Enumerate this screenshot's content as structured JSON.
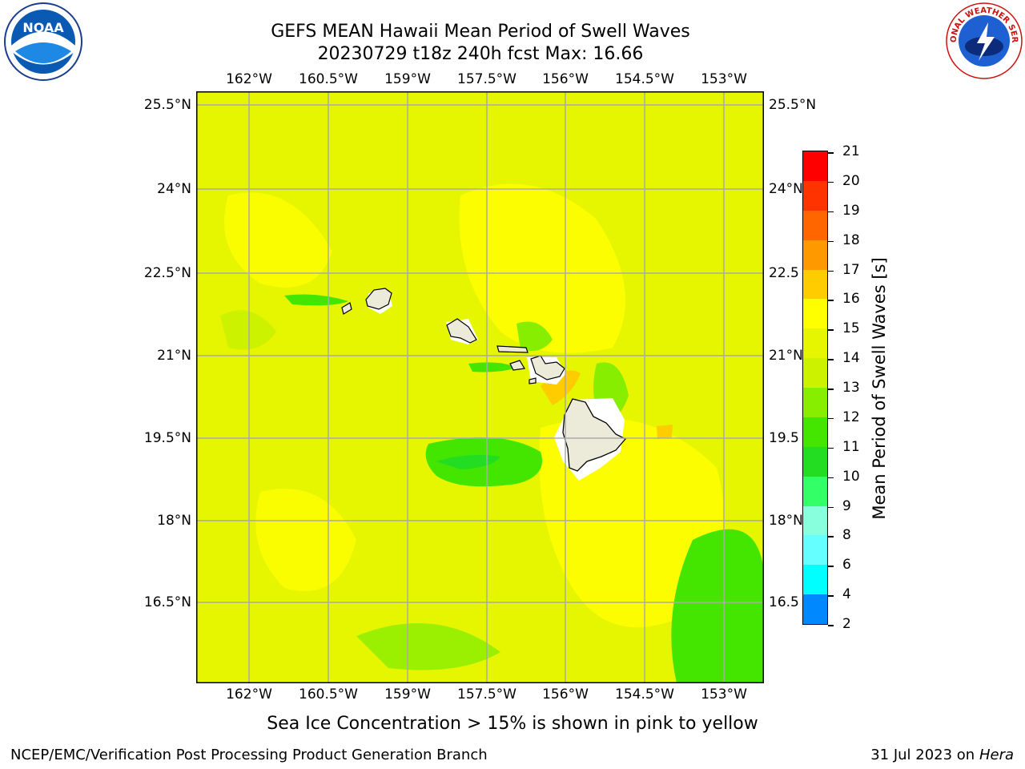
{
  "title": {
    "line1": "GEFS MEAN Hawaii Mean Period of Swell Waves",
    "line2": "20230729 t18z 240h fcst   Max: 16.66"
  },
  "map": {
    "lon_ticks": [
      "162°W",
      "160.5°W",
      "159°W",
      "157.5°W",
      "156°W",
      "154.5°W",
      "153°W"
    ],
    "lat_ticks": [
      "25.5°N",
      "24°N",
      "22.5°N",
      "21°N",
      "19.5°N",
      "18°N",
      "16.5°N"
    ],
    "lat_ticks_right": [
      "25.5°N",
      "24°N",
      "22.5",
      "21°N",
      "19.5",
      "18°N",
      "16.5"
    ],
    "background_color": "#e6f500",
    "land_color": "#ecebd9"
  },
  "colorbar": {
    "label": "Mean Period of Swell Waves [s]",
    "levels": [
      "21",
      "20",
      "19",
      "18",
      "17",
      "16",
      "15",
      "14",
      "13",
      "12",
      "11",
      "10",
      "9",
      "8",
      "6",
      "4",
      "2"
    ],
    "colors": [
      "#ff0000",
      "#ff3300",
      "#ff6600",
      "#ff9900",
      "#ffcc00",
      "#ffff00",
      "#e6f500",
      "#ccf200",
      "#88ee00",
      "#44e600",
      "#22dd22",
      "#33ff66",
      "#88ffdd",
      "#66ffff",
      "#00ffff",
      "#0088ff",
      "#0000ff"
    ]
  },
  "caption": "Sea Ice Concentration > 15% is shown in pink to yellow",
  "footer": {
    "left": "NCEP/EMC/Verification Post Processing Product Generation Branch",
    "right_date": "31 Jul 2023 on ",
    "right_host": "Hera"
  },
  "logos": {
    "noaa_text": "NOAA",
    "nws_text": "NATIONAL WEATHER SERVICE"
  }
}
